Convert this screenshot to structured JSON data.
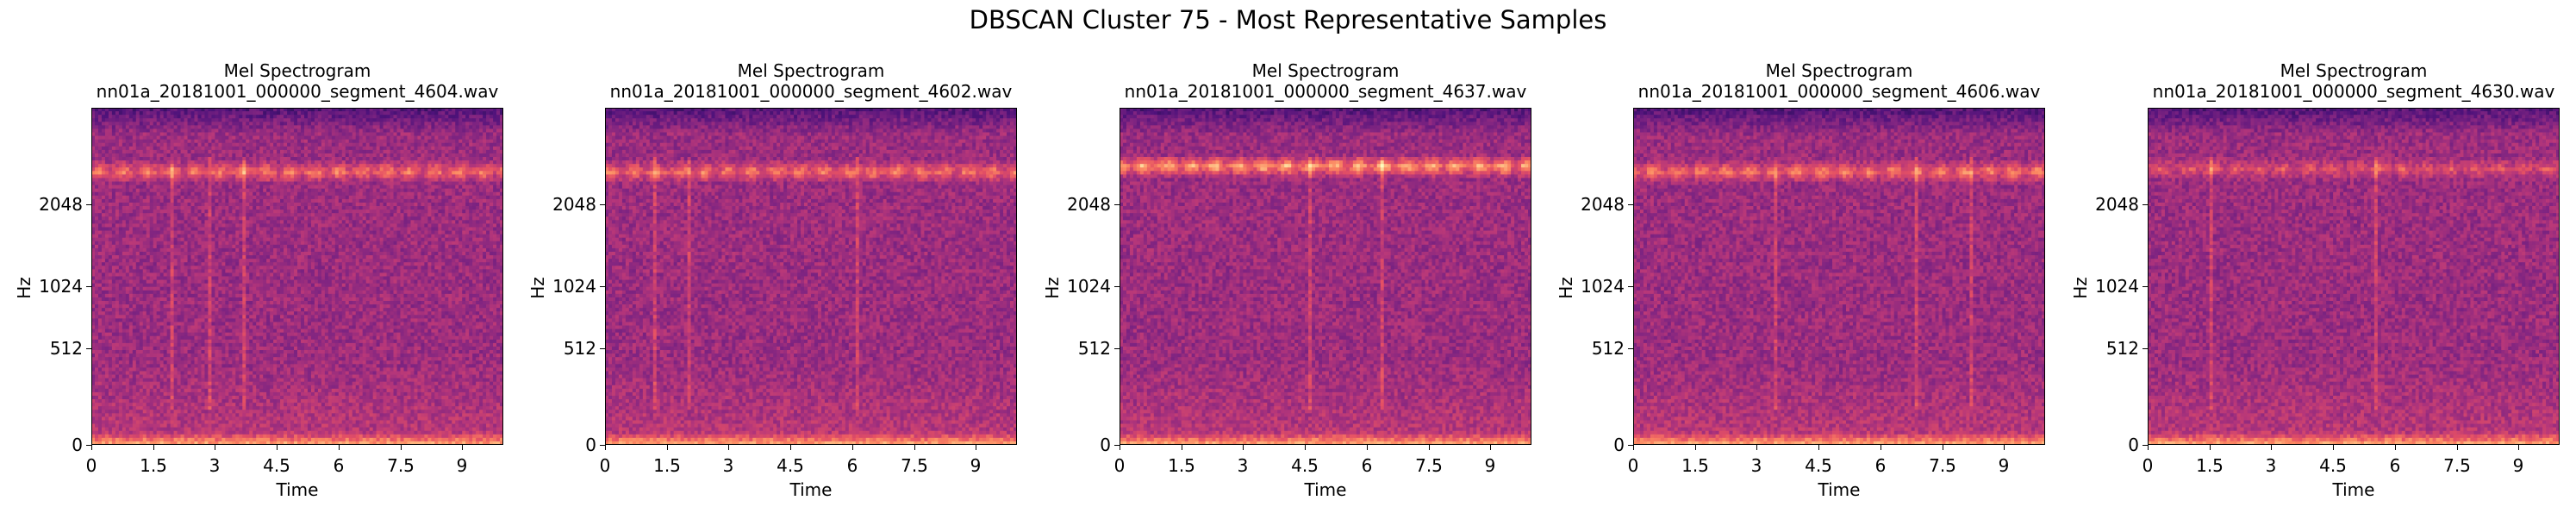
{
  "figure": {
    "title": "DBSCAN Cluster 75 - Most Representative Samples"
  },
  "chart_data": [
    {
      "type": "heatmap",
      "title": "Mel Spectrogram\nnn01a_20181001_000000_segment_4604.wav",
      "title_line1": "Mel Spectrogram",
      "title_line2": "nn01a_20181001_000000_segment_4604.wav",
      "xlabel": "Time",
      "ylabel": "Hz",
      "x_ticks": [
        "0",
        "1.5",
        "3",
        "4.5",
        "6",
        "7.5",
        "9"
      ],
      "x_tick_values": [
        0,
        1.5,
        3,
        4.5,
        6,
        7.5,
        9
      ],
      "y_ticks": [
        "0",
        "512",
        "1024",
        "2048"
      ],
      "xlim": [
        0,
        10
      ],
      "colormap": "magma",
      "band_hz": 2600,
      "band_strength": "strong",
      "vertical_streaks_s": [
        2.8,
        3.7,
        1.9
      ]
    },
    {
      "type": "heatmap",
      "title": "Mel Spectrogram\nnn01a_20181001_000000_segment_4602.wav",
      "title_line1": "Mel Spectrogram",
      "title_line2": "nn01a_20181001_000000_segment_4602.wav",
      "xlabel": "Time",
      "ylabel": "Hz",
      "x_ticks": [
        "0",
        "1.5",
        "3",
        "4.5",
        "6",
        "7.5",
        "9"
      ],
      "x_tick_values": [
        0,
        1.5,
        3,
        4.5,
        6,
        7.5,
        9
      ],
      "y_ticks": [
        "0",
        "512",
        "1024",
        "2048"
      ],
      "xlim": [
        0,
        10
      ],
      "colormap": "magma",
      "band_hz": 2600,
      "band_strength": "strong",
      "vertical_streaks_s": [
        1.2,
        2.0,
        6.1
      ]
    },
    {
      "type": "heatmap",
      "title": "Mel Spectrogram\nnn01a_20181001_000000_segment_4637.wav",
      "title_line1": "Mel Spectrogram",
      "title_line2": "nn01a_20181001_000000_segment_4637.wav",
      "xlabel": "Time",
      "ylabel": "Hz",
      "x_ticks": [
        "0",
        "1.5",
        "3",
        "4.5",
        "6",
        "7.5",
        "9"
      ],
      "x_tick_values": [
        0,
        1.5,
        3,
        4.5,
        6,
        7.5,
        9
      ],
      "y_ticks": [
        "0",
        "512",
        "1024",
        "2048"
      ],
      "xlim": [
        0,
        10
      ],
      "colormap": "magma",
      "band_hz": 2700,
      "band_strength": "very strong",
      "vertical_streaks_s": [
        6.3,
        4.6
      ]
    },
    {
      "type": "heatmap",
      "title": "Mel Spectrogram\nnn01a_20181001_000000_segment_4606.wav",
      "title_line1": "Mel Spectrogram",
      "title_line2": "nn01a_20181001_000000_segment_4606.wav",
      "xlabel": "Time",
      "ylabel": "Hz",
      "x_ticks": [
        "0",
        "1.5",
        "3",
        "4.5",
        "6",
        "7.5",
        "9"
      ],
      "x_tick_values": [
        0,
        1.5,
        3,
        4.5,
        6,
        7.5,
        9
      ],
      "y_ticks": [
        "0",
        "512",
        "1024",
        "2048"
      ],
      "xlim": [
        0,
        10
      ],
      "colormap": "magma",
      "band_hz": 2600,
      "band_strength": "strong",
      "vertical_streaks_s": [
        6.8,
        8.2,
        3.4
      ]
    },
    {
      "type": "heatmap",
      "title": "Mel Spectrogram\nnn01a_20181001_000000_segment_4630.wav",
      "title_line1": "Mel Spectrogram",
      "title_line2": "nn01a_20181001_000000_segment_4630.wav",
      "xlabel": "Time",
      "ylabel": "Hz",
      "x_ticks": [
        "0",
        "1.5",
        "3",
        "4.5",
        "6",
        "7.5",
        "9"
      ],
      "x_tick_values": [
        0,
        1.5,
        3,
        4.5,
        6,
        7.5,
        9
      ],
      "y_ticks": [
        "0",
        "512",
        "1024",
        "2048"
      ],
      "xlim": [
        0,
        10
      ],
      "colormap": "magma",
      "band_hz": 2650,
      "band_strength": "medium",
      "vertical_streaks_s": [
        1.5,
        5.5
      ]
    }
  ]
}
